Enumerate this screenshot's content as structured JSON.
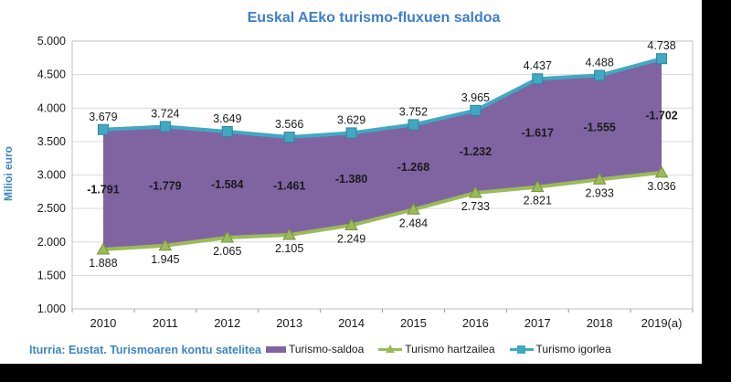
{
  "title": "Euskal AEko turismo-fluxuen saldoa",
  "y_axis_title": "Milioi euro",
  "source_note": "Iturria: Eustat. Turismoaren kontu satelitea",
  "colors": {
    "title_blue": "#3d7ec8",
    "source_blue": "#3d85c6",
    "saldoa_purple": "#8064a2",
    "hartzailea_green": "#9bbb59",
    "hartzailea_green_dark": "#77933c",
    "igorlea_teal": "#41a8c3",
    "igorlea_teal_dark": "#31859b",
    "gridline": "#d9d9d9",
    "plot_border": "#bfbfbf",
    "axis_line": "#9a9a9a",
    "label_text": "#1a1a1a"
  },
  "chart_data": {
    "type": "area",
    "title": "Euskal AEko turismo-fluxuen saldoa",
    "xlabel": "",
    "ylabel": "Milioi euro",
    "categories": [
      "2010",
      "2011",
      "2012",
      "2013",
      "2014",
      "2015",
      "2016",
      "2017",
      "2018",
      "2019(a)"
    ],
    "ylim": [
      1000,
      5000
    ],
    "y_tick_step": 500,
    "y_tick_labels": [
      "5.000",
      "4.500",
      "4.000",
      "3.500",
      "3.000",
      "2.500",
      "2.000",
      "1.500",
      "1.000"
    ],
    "grid": true,
    "legend_position": "bottom",
    "series": [
      {
        "name": "Turismo igorlea",
        "type": "line",
        "marker": "square",
        "values": [
          3679,
          3724,
          3649,
          3566,
          3629,
          3752,
          3965,
          4437,
          4488,
          4738
        ],
        "labels": [
          "3.679",
          "3.724",
          "3.649",
          "3.566",
          "3.629",
          "3.752",
          "3.965",
          "4.437",
          "4.488",
          "4.738"
        ]
      },
      {
        "name": "Turismo hartzailea",
        "type": "line",
        "marker": "triangle",
        "values": [
          1888,
          1945,
          2065,
          2105,
          2249,
          2484,
          2733,
          2821,
          2933,
          3036
        ],
        "labels": [
          "1.888",
          "1.945",
          "2.065",
          "2.105",
          "2.249",
          "2.484",
          "2.733",
          "2.821",
          "2.933",
          "3.036"
        ]
      },
      {
        "name": "Turismo-saldoa",
        "type": "area-between",
        "values": [
          -1791,
          -1779,
          -1584,
          -1461,
          -1380,
          -1268,
          -1232,
          -1617,
          -1555,
          -1702
        ],
        "labels": [
          "-1.791",
          "-1.779",
          "-1.584",
          "-1.461",
          "-1.380",
          "-1.268",
          "-1.232",
          "-1.617",
          "-1.555",
          "-1.702"
        ]
      }
    ]
  },
  "legend": {
    "items": [
      {
        "label": "Turismo-saldoa",
        "swatch": "box"
      },
      {
        "label": "Turismo hartzailea",
        "swatch": "line-triangle"
      },
      {
        "label": "Turismo igorlea",
        "swatch": "line-square"
      }
    ]
  }
}
